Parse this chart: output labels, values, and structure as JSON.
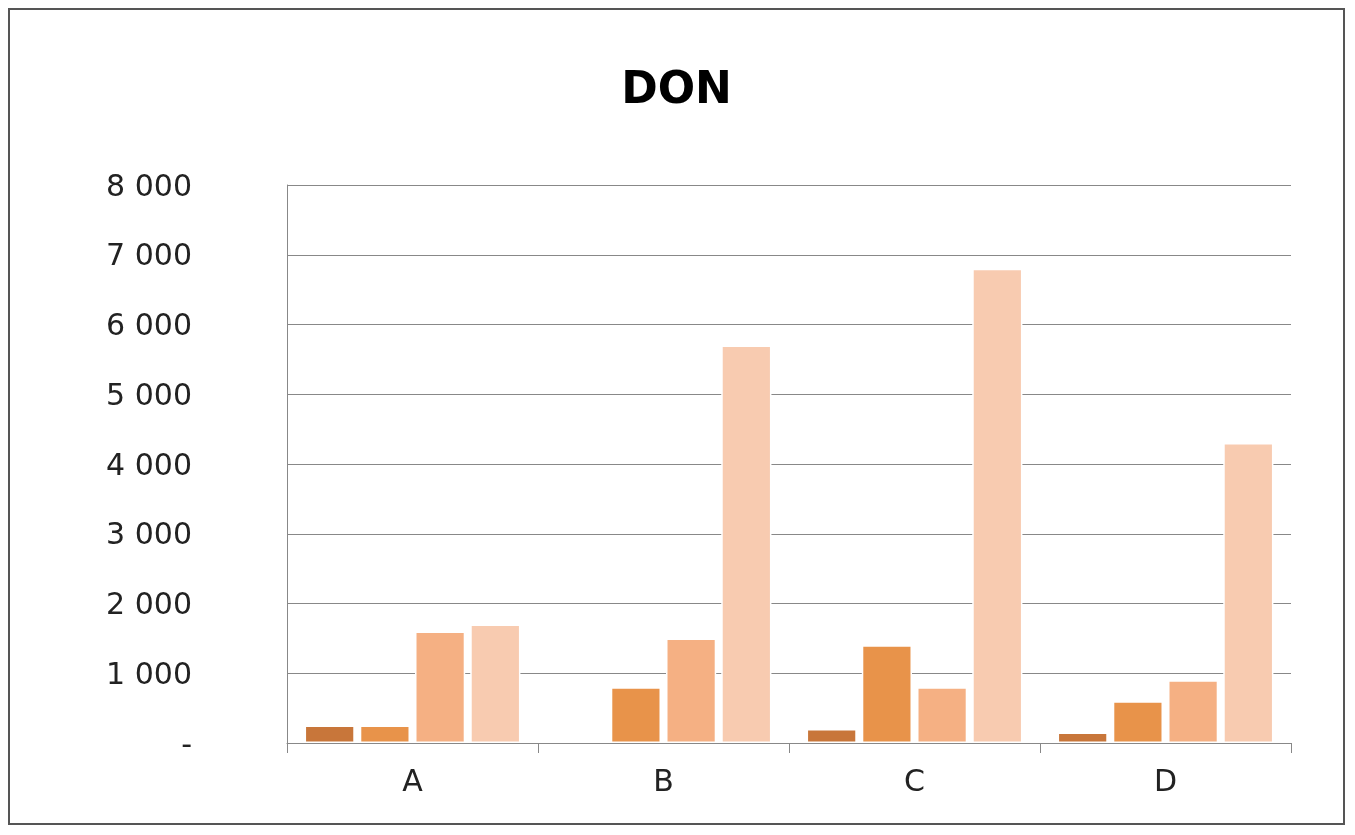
{
  "chart_data": {
    "type": "bar",
    "title": "DON",
    "categories": [
      "A",
      "B",
      "C",
      "D"
    ],
    "series": [
      {
        "color": "#c8763a",
        "values": [
          250,
          null,
          200,
          150
        ]
      },
      {
        "color": "#e8934a",
        "values": [
          250,
          800,
          1400,
          600
        ]
      },
      {
        "color": "#f5b083",
        "values": [
          1600,
          1500,
          800,
          900
        ]
      },
      {
        "color": "#f8cbb0",
        "values": [
          1700,
          5700,
          6800,
          4300
        ]
      }
    ],
    "ylim": [
      0,
      8000
    ],
    "yticks": [
      {
        "value": 0,
        "label": "-"
      },
      {
        "value": 1000,
        "label": "1 000"
      },
      {
        "value": 2000,
        "label": "2 000"
      },
      {
        "value": 3000,
        "label": "3 000"
      },
      {
        "value": 4000,
        "label": "4 000"
      },
      {
        "value": 5000,
        "label": "5 000"
      },
      {
        "value": 6000,
        "label": "6 000"
      },
      {
        "value": 7000,
        "label": "7 000"
      },
      {
        "value": 8000,
        "label": "8 000"
      }
    ],
    "grid": "y"
  }
}
